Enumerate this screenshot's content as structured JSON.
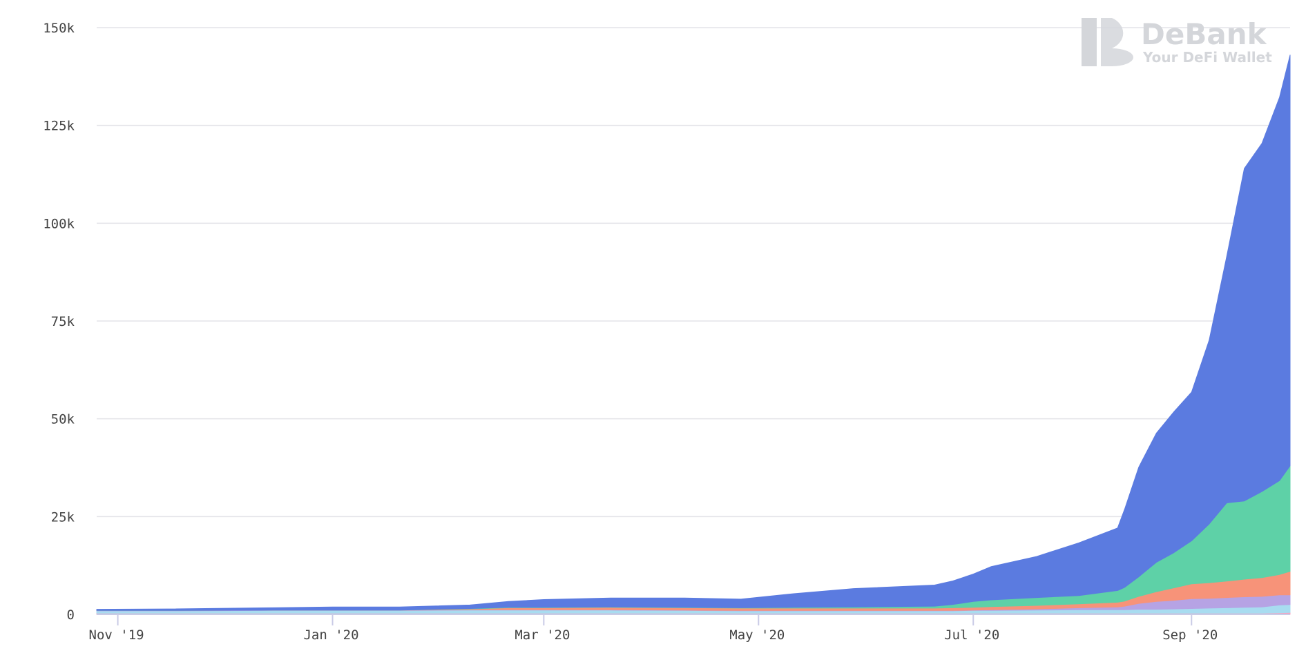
{
  "watermark": {
    "title": "DeBank",
    "subtitle": "Your DeFi Wallet"
  },
  "chart_data": {
    "type": "area",
    "stacked": true,
    "grid": true,
    "legend": "none",
    "title": "",
    "xlabel": "",
    "ylabel": "",
    "ylim": [
      0,
      150000
    ],
    "xlim": [
      "2019-10-26",
      "2020-09-29"
    ],
    "y_ticks": [
      {
        "value": 0,
        "label": "0"
      },
      {
        "value": 25000,
        "label": "25k"
      },
      {
        "value": 50000,
        "label": "50k"
      },
      {
        "value": 75000,
        "label": "75k"
      },
      {
        "value": 100000,
        "label": "100k"
      },
      {
        "value": 125000,
        "label": "125k"
      },
      {
        "value": 150000,
        "label": "150k"
      }
    ],
    "x_ticks": [
      {
        "date": "2019-11-01",
        "label": "Nov '19"
      },
      {
        "date": "2020-01-01",
        "label": "Jan '20"
      },
      {
        "date": "2020-03-01",
        "label": "Mar '20"
      },
      {
        "date": "2020-05-01",
        "label": "May '20"
      },
      {
        "date": "2020-07-01",
        "label": "Jul '20"
      },
      {
        "date": "2020-09-01",
        "label": "Sep '20"
      }
    ],
    "dates": [
      "2019-10-26",
      "2019-11-15",
      "2019-12-15",
      "2020-01-01",
      "2020-01-20",
      "2020-02-09",
      "2020-02-20",
      "2020-03-01",
      "2020-03-20",
      "2020-04-10",
      "2020-04-26",
      "2020-05-11",
      "2020-05-28",
      "2020-06-20",
      "2020-06-25",
      "2020-07-01",
      "2020-07-06",
      "2020-07-19",
      "2020-07-31",
      "2020-08-11",
      "2020-08-13",
      "2020-08-17",
      "2020-08-22",
      "2020-08-27",
      "2020-09-01",
      "2020-09-06",
      "2020-09-11",
      "2020-09-16",
      "2020-09-21",
      "2020-09-26",
      "2020-09-29"
    ],
    "series": [
      {
        "color": "#f3a3c0",
        "values": [
          300,
          300,
          300,
          300,
          300,
          300,
          300,
          300,
          300,
          300,
          300,
          300,
          300,
          300,
          300,
          300,
          300,
          300,
          300,
          300,
          300,
          300,
          300,
          300,
          300,
          300,
          300,
          300,
          300,
          400,
          500
        ]
      },
      {
        "color": "#a8dcf0",
        "values": [
          600,
          600,
          700,
          700,
          700,
          800,
          800,
          800,
          800,
          700,
          600,
          600,
          600,
          600,
          600,
          700,
          700,
          800,
          900,
          900,
          900,
          1000,
          1000,
          1100,
          1200,
          1300,
          1400,
          1500,
          1600,
          2000,
          2000
        ]
      },
      {
        "color": "#b6a3e4",
        "values": [
          100,
          100,
          100,
          100,
          100,
          100,
          100,
          100,
          100,
          100,
          100,
          100,
          100,
          100,
          100,
          100,
          200,
          300,
          500,
          700,
          900,
          1500,
          2000,
          2200,
          2500,
          2500,
          2600,
          2700,
          2700,
          2600,
          2500
        ]
      },
      {
        "color": "#f79379",
        "values": [
          0,
          0,
          0,
          0,
          0,
          200,
          500,
          500,
          600,
          600,
          600,
          600,
          600,
          600,
          700,
          700,
          800,
          900,
          1000,
          1200,
          1300,
          1800,
          2500,
          3200,
          3800,
          4000,
          4200,
          4500,
          4800,
          5200,
          6000
        ]
      },
      {
        "color": "#5ed1a7",
        "values": [
          0,
          0,
          0,
          0,
          0,
          100,
          100,
          100,
          100,
          100,
          100,
          200,
          300,
          500,
          800,
          1500,
          1700,
          2000,
          2100,
          3000,
          3500,
          5000,
          7500,
          9000,
          11000,
          15000,
          20000,
          20000,
          22000,
          24000,
          27000
        ]
      },
      {
        "color": "#5b7be0",
        "values": [
          300,
          400,
          600,
          800,
          800,
          900,
          1500,
          2000,
          2300,
          2400,
          2200,
          3500,
          4700,
          5400,
          6000,
          7000,
          8500,
          10500,
          13500,
          16000,
          20000,
          28000,
          33000,
          36000,
          38000,
          47000,
          63000,
          85000,
          89000,
          98000,
          105000
        ]
      }
    ]
  }
}
